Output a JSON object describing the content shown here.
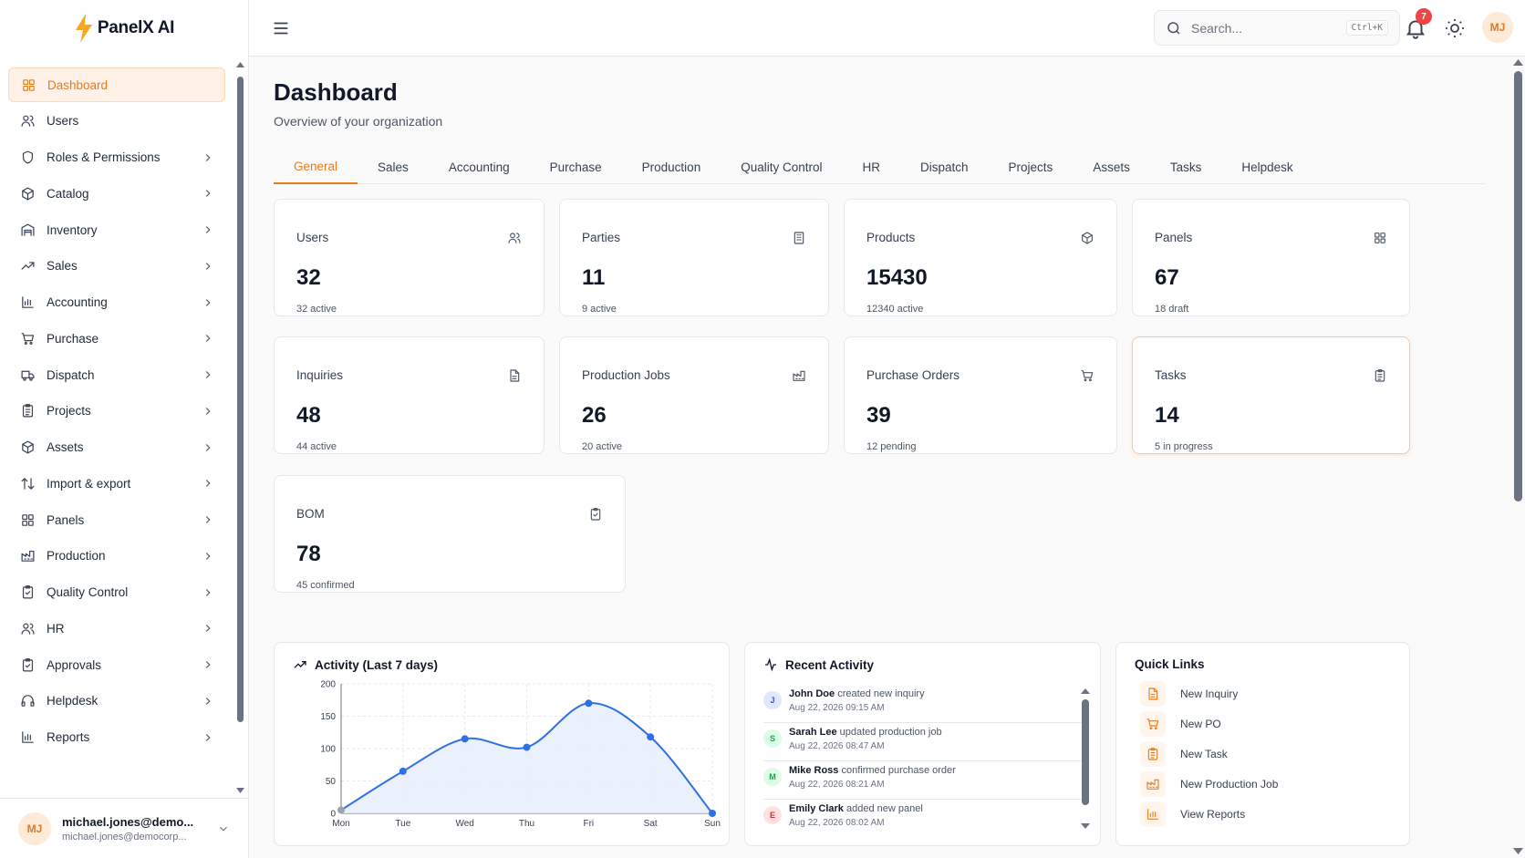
{
  "app": {
    "name": "PanelX AI"
  },
  "sidebar": {
    "items": [
      {
        "label": "Dashboard",
        "icon": "grid-icon",
        "active": true,
        "chevron": false
      },
      {
        "label": "Users",
        "icon": "users-icon",
        "active": false,
        "chevron": false
      },
      {
        "label": "Roles & Permissions",
        "icon": "shield-icon",
        "active": false,
        "chevron": true
      },
      {
        "label": "Catalog",
        "icon": "box-icon",
        "active": false,
        "chevron": true
      },
      {
        "label": "Inventory",
        "icon": "warehouse-icon",
        "active": false,
        "chevron": true
      },
      {
        "label": "Sales",
        "icon": "trending-up-icon",
        "active": false,
        "chevron": true
      },
      {
        "label": "Accounting",
        "icon": "bar-chart-icon",
        "active": false,
        "chevron": true
      },
      {
        "label": "Purchase",
        "icon": "cart-icon",
        "active": false,
        "chevron": true
      },
      {
        "label": "Dispatch",
        "icon": "truck-icon",
        "active": false,
        "chevron": true
      },
      {
        "label": "Projects",
        "icon": "clipboard-list-icon",
        "active": false,
        "chevron": true
      },
      {
        "label": "Assets",
        "icon": "cube-icon",
        "active": false,
        "chevron": true
      },
      {
        "label": "Import & export",
        "icon": "arrows-up-down-icon",
        "active": false,
        "chevron": true
      },
      {
        "label": "Panels",
        "icon": "grid-icon",
        "active": false,
        "chevron": true
      },
      {
        "label": "Production",
        "icon": "factory-icon",
        "active": false,
        "chevron": true
      },
      {
        "label": "Quality Control",
        "icon": "clipboard-check-icon",
        "active": false,
        "chevron": true
      },
      {
        "label": "HR",
        "icon": "users-icon",
        "active": false,
        "chevron": true
      },
      {
        "label": "Approvals",
        "icon": "clipboard-check-icon",
        "active": false,
        "chevron": true
      },
      {
        "label": "Helpdesk",
        "icon": "headphones-icon",
        "active": false,
        "chevron": true
      },
      {
        "label": "Reports",
        "icon": "bar-chart-icon",
        "active": false,
        "chevron": true
      }
    ],
    "user": {
      "initials": "MJ",
      "name": "michael.jones@demo...",
      "email": "michael.jones@democorp..."
    }
  },
  "topbar": {
    "search_placeholder": "Search...",
    "search_shortcut": "Ctrl+K",
    "notification_count": "7",
    "avatar_initials": "MJ"
  },
  "page": {
    "title": "Dashboard",
    "subtitle": "Overview of your organization"
  },
  "tabs": [
    {
      "label": "General",
      "active": true
    },
    {
      "label": "Sales",
      "active": false
    },
    {
      "label": "Accounting",
      "active": false
    },
    {
      "label": "Purchase",
      "active": false
    },
    {
      "label": "Production",
      "active": false
    },
    {
      "label": "Quality Control",
      "active": false
    },
    {
      "label": "HR",
      "active": false
    },
    {
      "label": "Dispatch",
      "active": false
    },
    {
      "label": "Projects",
      "active": false
    },
    {
      "label": "Assets",
      "active": false
    },
    {
      "label": "Tasks",
      "active": false
    },
    {
      "label": "Helpdesk",
      "active": false
    }
  ],
  "stats": [
    {
      "title": "Users",
      "value": "32",
      "sub": "32 active",
      "icon": "users-icon"
    },
    {
      "title": "Parties",
      "value": "11",
      "sub": "9 active",
      "icon": "building-icon"
    },
    {
      "title": "Products",
      "value": "15430",
      "sub": "12340 active",
      "icon": "box-icon"
    },
    {
      "title": "Panels",
      "value": "67",
      "sub": "18 draft",
      "icon": "grid-icon"
    },
    {
      "title": "Inquiries",
      "value": "48",
      "sub": "44 active",
      "icon": "file-text-icon"
    },
    {
      "title": "Production Jobs",
      "value": "26",
      "sub": "20 active",
      "icon": "factory-icon"
    },
    {
      "title": "Purchase Orders",
      "value": "39",
      "sub": "12 pending",
      "icon": "cart-icon"
    },
    {
      "title": "Tasks",
      "value": "14",
      "sub": "5 in progress",
      "icon": "clipboard-list-icon"
    },
    {
      "title": "BOM",
      "value": "78",
      "sub": "45 confirmed",
      "icon": "clipboard-check-icon"
    }
  ],
  "activity_panel": {
    "title": "Activity (Last 7 days)"
  },
  "chart_data": {
    "type": "area",
    "title": "Activity (Last 7 days)",
    "categories": [
      "Mon",
      "Tue",
      "Wed",
      "Thu",
      "Fri",
      "Sat",
      "Sun"
    ],
    "series": [
      {
        "values": [
          5,
          65,
          115,
          102,
          170,
          118,
          0
        ]
      }
    ],
    "yticks": [
      "0",
      "50",
      "100",
      "150",
      "200"
    ],
    "ylim": [
      0,
      200
    ],
    "grid": true,
    "color": "#2f6fe4",
    "fill": "#e8effc"
  },
  "recent_activity": {
    "title": "Recent Activity",
    "items": [
      {
        "initial": "J",
        "user": "John Doe",
        "action": "created new inquiry",
        "time": "Aug 22, 2026 09:15 AM",
        "color": "#e0e7ff",
        "fg": "#4f46e5"
      },
      {
        "initial": "S",
        "user": "Sarah Lee",
        "action": "updated production job",
        "time": "Aug 22, 2026 08:47 AM",
        "color": "#dcfce7",
        "fg": "#16a34a"
      },
      {
        "initial": "M",
        "user": "Mike Ross",
        "action": "confirmed purchase order",
        "time": "Aug 22, 2026 08:21 AM",
        "color": "#dcfce7",
        "fg": "#16a34a"
      },
      {
        "initial": "E",
        "user": "Emily Clark",
        "action": "added new panel",
        "time": "Aug 22, 2026 08:02 AM",
        "color": "#fee2e2",
        "fg": "#dc2626"
      }
    ]
  },
  "quick_links": {
    "title": "Quick Links",
    "items": [
      {
        "label": "New Inquiry",
        "icon": "file-text-icon"
      },
      {
        "label": "New PO",
        "icon": "cart-icon"
      },
      {
        "label": "New Task",
        "icon": "clipboard-list-icon"
      },
      {
        "label": "New Production Job",
        "icon": "factory-icon"
      },
      {
        "label": "View Reports",
        "icon": "bar-chart-icon"
      }
    ]
  },
  "colors": {
    "accent": "#ea7b1a",
    "chart_line": "#2f6fe4"
  }
}
